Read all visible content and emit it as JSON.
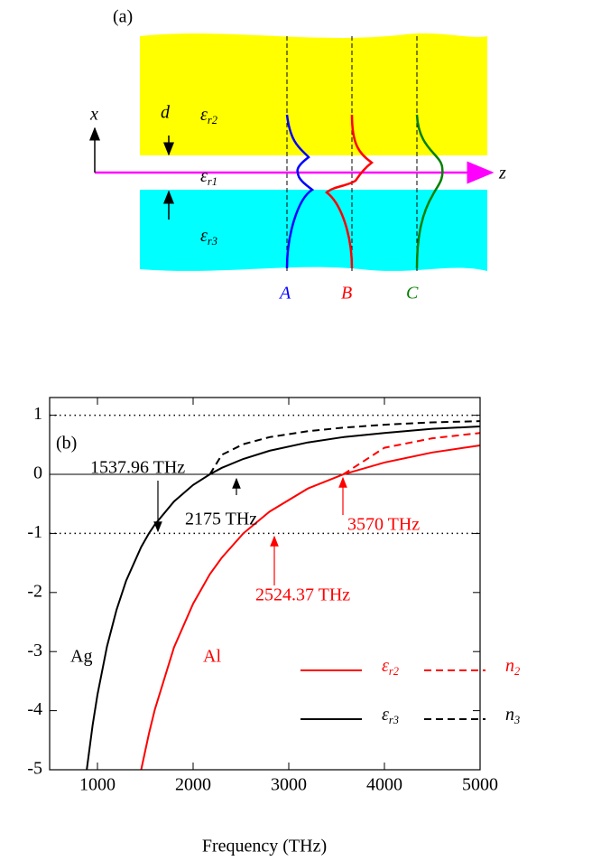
{
  "figure_a": {
    "label": "(a)",
    "axis_x": "x",
    "axis_z": "z",
    "thickness": "d",
    "layer_top": "εr2",
    "layer_core": "εr1",
    "layer_bottom": "εr3",
    "modes": [
      "A",
      "B",
      "C"
    ]
  },
  "chart_data": {
    "type": "line",
    "panel_label": "(b)",
    "x_label": "Frequency (THz)",
    "x": [
      888,
      950,
      1000,
      1100,
      1200,
      1300,
      1457,
      1537.96,
      1600,
      1800,
      2000,
      2175,
      2300,
      2524.37,
      2800,
      3200,
      3570,
      4000,
      4500,
      5000
    ],
    "series": [
      {
        "name": "εr2",
        "color": "#ff0000",
        "dash": false,
        "values": [
          null,
          null,
          null,
          null,
          null,
          null,
          -5,
          -4.39,
          -3.98,
          -2.93,
          -2.19,
          -1.69,
          -1.41,
          -1,
          -0.63,
          -0.24,
          0,
          0.2,
          0.37,
          0.49
        ]
      },
      {
        "name": "n2",
        "color": "#ff0000",
        "dash": true,
        "values": [
          null,
          null,
          null,
          null,
          null,
          null,
          null,
          null,
          null,
          null,
          null,
          null,
          null,
          null,
          null,
          null,
          0,
          0.45,
          0.61,
          0.7
        ]
      },
      {
        "name": "εr3",
        "color": "#000000",
        "dash": false,
        "values": [
          -5,
          -4.24,
          -3.73,
          -2.91,
          -2.29,
          -1.8,
          -1.23,
          -1,
          -0.85,
          -0.46,
          -0.18,
          0,
          0.11,
          0.26,
          0.4,
          0.54,
          0.63,
          0.7,
          0.77,
          0.81
        ]
      },
      {
        "name": "n3",
        "color": "#000000",
        "dash": true,
        "values": [
          null,
          null,
          null,
          null,
          null,
          null,
          null,
          null,
          null,
          null,
          null,
          0,
          0.33,
          0.51,
          0.63,
          0.73,
          0.79,
          0.84,
          0.88,
          0.9
        ]
      }
    ],
    "annotations": [
      {
        "text": "1537.96 THz",
        "color": "#000000"
      },
      {
        "text": "2175 THz",
        "color": "#000000"
      },
      {
        "text": "3570 THz",
        "color": "#ff0000"
      },
      {
        "text": "2524.37 THz",
        "color": "#ff0000"
      },
      {
        "text": "Ag",
        "color": "#000000"
      },
      {
        "text": "Al",
        "color": "#ff0000"
      }
    ],
    "hlines": [
      {
        "y": 1,
        "style": "dotted"
      },
      {
        "y": 0,
        "style": "solid"
      },
      {
        "y": -1,
        "style": "dotted"
      }
    ],
    "xlim": [
      500,
      5000
    ],
    "ylim": [
      -5,
      1.3
    ],
    "xticks": [
      1000,
      2000,
      3000,
      4000,
      5000
    ],
    "yticks": [
      -5,
      -4,
      -3,
      -2,
      -1,
      0,
      1
    ]
  }
}
